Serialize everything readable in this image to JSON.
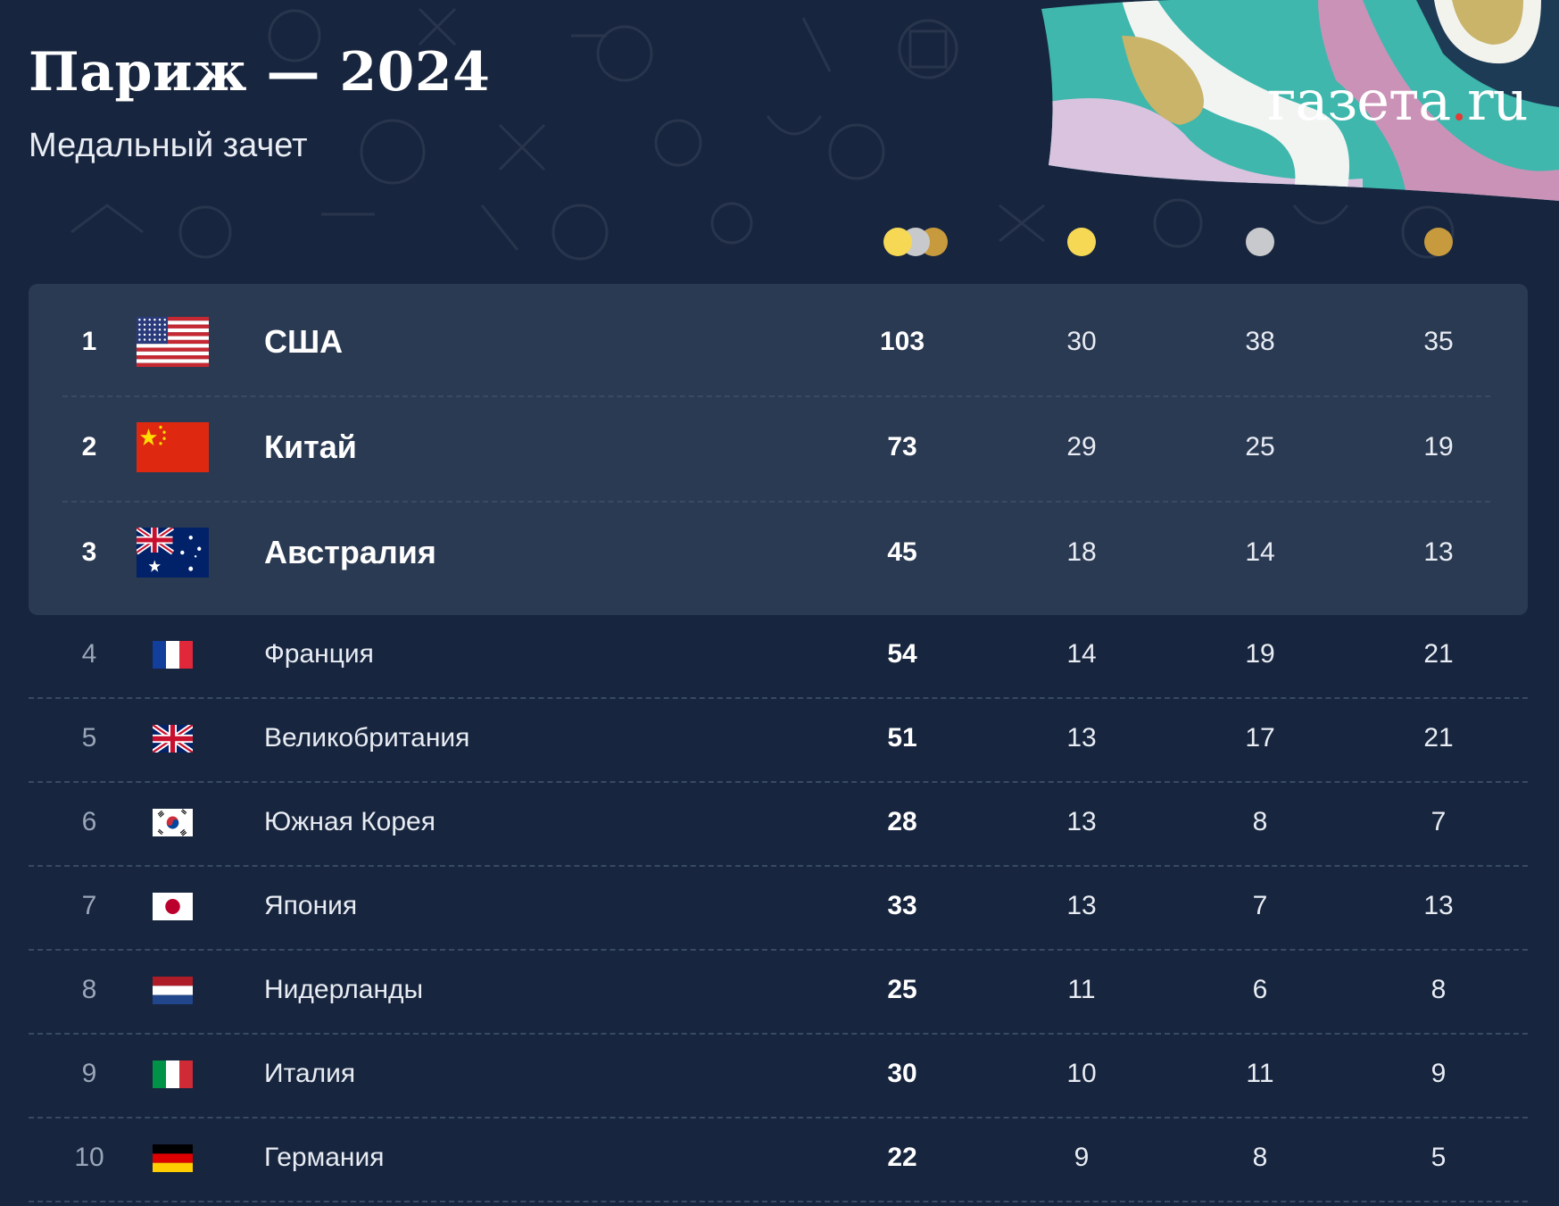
{
  "header": {
    "title": "Париж — 2024",
    "subtitle": "Медальный зачет",
    "logo_main": "газета",
    "logo_dot": ".",
    "logo_tld": "ru"
  },
  "columns": {
    "total_icon": "medals-total-icon",
    "gold_icon": "gold-medal-icon",
    "silver_icon": "silver-medal-icon",
    "bronze_icon": "bronze-medal-icon"
  },
  "colors": {
    "gold": "#f6d855",
    "silver": "#c8c9cc",
    "bronze": "#c89a3e",
    "background": "#17253e",
    "highlight": "#2b3a53"
  },
  "rows": [
    {
      "rank": "1",
      "country": "США",
      "flag": "usa-flag",
      "total": "103",
      "gold": "30",
      "silver": "38",
      "bronze": "35"
    },
    {
      "rank": "2",
      "country": "Китай",
      "flag": "china-flag",
      "total": "73",
      "gold": "29",
      "silver": "25",
      "bronze": "19"
    },
    {
      "rank": "3",
      "country": "Австралия",
      "flag": "australia-flag",
      "total": "45",
      "gold": "18",
      "silver": "14",
      "bronze": "13"
    },
    {
      "rank": "4",
      "country": "Франция",
      "flag": "france-flag",
      "total": "54",
      "gold": "14",
      "silver": "19",
      "bronze": "21"
    },
    {
      "rank": "5",
      "country": "Великобритания",
      "flag": "uk-flag",
      "total": "51",
      "gold": "13",
      "silver": "17",
      "bronze": "21"
    },
    {
      "rank": "6",
      "country": "Южная Корея",
      "flag": "south-korea-flag",
      "total": "28",
      "gold": "13",
      "silver": "8",
      "bronze": "7"
    },
    {
      "rank": "7",
      "country": "Япония",
      "flag": "japan-flag",
      "total": "33",
      "gold": "13",
      "silver": "7",
      "bronze": "13"
    },
    {
      "rank": "8",
      "country": "Нидерланды",
      "flag": "netherlands-flag",
      "total": "25",
      "gold": "11",
      "silver": "6",
      "bronze": "8"
    },
    {
      "rank": "9",
      "country": "Италия",
      "flag": "italy-flag",
      "total": "30",
      "gold": "10",
      "silver": "11",
      "bronze": "9"
    },
    {
      "rank": "10",
      "country": "Германия",
      "flag": "germany-flag",
      "total": "22",
      "gold": "9",
      "silver": "8",
      "bronze": "5"
    }
  ]
}
